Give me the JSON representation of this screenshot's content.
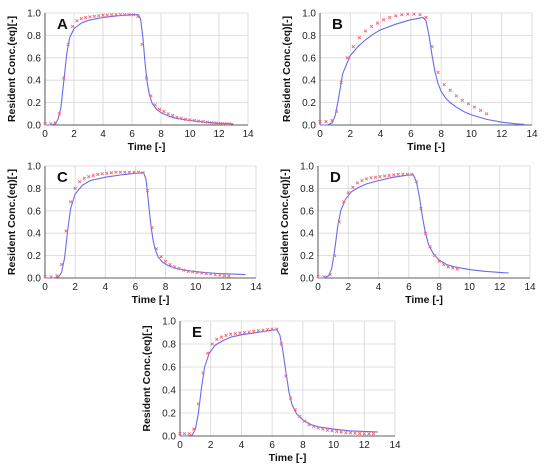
{
  "chart_data": [
    {
      "type": "line",
      "panel": "A",
      "xlabel": "Time [-]",
      "ylabel": "Resident Conc.(eq)[-]",
      "xlim": [
        0,
        14
      ],
      "ylim": [
        0,
        1.0
      ],
      "xticks": [
        "0",
        "2",
        "4",
        "6",
        "8",
        "10",
        "12",
        "14"
      ],
      "yticks": [
        "0.0",
        "0.2",
        "0.4",
        "0.6",
        "0.8",
        "1.0"
      ],
      "grid": true,
      "series": [
        {
          "kind": "line",
          "color": "#6a6aee",
          "x": [
            0,
            0.4,
            0.7,
            0.9,
            1.1,
            1.3,
            1.5,
            1.7,
            2.0,
            2.5,
            3.0,
            4.0,
            5.0,
            6.0,
            6.45,
            6.6,
            6.75,
            6.9,
            7.05,
            7.2,
            7.4,
            7.7,
            8.0,
            8.5,
            9.0,
            10.0,
            11.0,
            12.0,
            13.0
          ],
          "y": [
            0,
            0,
            0.01,
            0.05,
            0.16,
            0.4,
            0.64,
            0.78,
            0.86,
            0.91,
            0.935,
            0.96,
            0.975,
            0.985,
            0.985,
            0.94,
            0.78,
            0.55,
            0.38,
            0.27,
            0.19,
            0.14,
            0.11,
            0.08,
            0.06,
            0.04,
            0.025,
            0.015,
            0.01
          ]
        },
        {
          "kind": "markers",
          "color": "#ee6a7a",
          "x": [
            0,
            0.4,
            0.7,
            1.0,
            1.3,
            1.6,
            1.9,
            2.2,
            2.5,
            2.8,
            3.1,
            3.4,
            3.7,
            4.0,
            4.3,
            4.6,
            4.9,
            5.2,
            5.5,
            5.8,
            6.1,
            6.4,
            6.7,
            7.0,
            7.3,
            7.6,
            7.9,
            8.2,
            8.5,
            8.8,
            9.1,
            9.4,
            9.7,
            10.0,
            10.3,
            10.6,
            10.9,
            11.2,
            11.5,
            11.8,
            12.1,
            12.4,
            12.7
          ],
          "y": [
            0.01,
            0.01,
            0.02,
            0.1,
            0.42,
            0.72,
            0.88,
            0.93,
            0.95,
            0.96,
            0.965,
            0.97,
            0.975,
            0.98,
            0.98,
            0.985,
            0.985,
            0.985,
            0.985,
            0.985,
            0.985,
            0.97,
            0.72,
            0.42,
            0.26,
            0.18,
            0.14,
            0.12,
            0.1,
            0.085,
            0.07,
            0.06,
            0.05,
            0.045,
            0.04,
            0.035,
            0.03,
            0.025,
            0.02,
            0.018,
            0.015,
            0.012,
            0.01
          ]
        }
      ]
    },
    {
      "type": "line",
      "panel": "B",
      "xlabel": "Time [-]",
      "ylabel": "Resident Conc.(eq)[-]",
      "xlim": [
        0,
        14
      ],
      "ylim": [
        0,
        1.0
      ],
      "xticks": [
        "0",
        "2",
        "4",
        "6",
        "8",
        "10",
        "12",
        "14"
      ],
      "yticks": [
        "0.0",
        "0.2",
        "0.4",
        "0.6",
        "0.8",
        "1.0"
      ],
      "grid": true,
      "series": [
        {
          "kind": "line",
          "color": "#6a6aee",
          "x": [
            0,
            0.5,
            0.8,
            1.0,
            1.2,
            1.5,
            2.0,
            2.5,
            3.0,
            3.5,
            4.0,
            5.0,
            6.0,
            6.8,
            7.0,
            7.2,
            7.4,
            7.6,
            7.8,
            8.0,
            8.3,
            8.6,
            9.0,
            9.5,
            10.0,
            11.0,
            12.0,
            13.0,
            13.5
          ],
          "y": [
            0,
            0,
            0.02,
            0.08,
            0.22,
            0.46,
            0.62,
            0.7,
            0.76,
            0.81,
            0.85,
            0.9,
            0.94,
            0.96,
            0.93,
            0.8,
            0.62,
            0.47,
            0.37,
            0.3,
            0.24,
            0.2,
            0.16,
            0.12,
            0.09,
            0.05,
            0.025,
            0.01,
            0.005
          ]
        },
        {
          "kind": "markers",
          "color": "#ee6a7a",
          "x": [
            0,
            0.4,
            0.8,
            1.1,
            1.4,
            1.8,
            2.2,
            2.6,
            3.0,
            3.4,
            3.8,
            4.2,
            4.6,
            5.0,
            5.4,
            5.8,
            6.2,
            6.6,
            7.0,
            7.4,
            7.8,
            8.2,
            8.6,
            9.0,
            9.4,
            9.8,
            10.2,
            10.6,
            11.0
          ],
          "y": [
            0.03,
            0.03,
            0.04,
            0.12,
            0.38,
            0.6,
            0.7,
            0.78,
            0.84,
            0.88,
            0.91,
            0.94,
            0.96,
            0.975,
            0.985,
            0.99,
            0.99,
            0.985,
            0.96,
            0.7,
            0.47,
            0.36,
            0.31,
            0.26,
            0.22,
            0.19,
            0.16,
            0.13,
            0.1
          ]
        }
      ]
    },
    {
      "type": "line",
      "panel": "C",
      "xlabel": "Time [-]",
      "ylabel": "Resident Conc.(eq)[-]",
      "xlim": [
        0,
        14
      ],
      "ylim": [
        0,
        1.0
      ],
      "xticks": [
        "0",
        "2",
        "4",
        "6",
        "8",
        "10",
        "12",
        "14"
      ],
      "yticks": [
        "0.0",
        "0.2",
        "0.4",
        "0.6",
        "0.8",
        "1.0"
      ],
      "grid": true,
      "series": [
        {
          "kind": "line",
          "color": "#6a6aee",
          "x": [
            0,
            0.6,
            0.9,
            1.1,
            1.3,
            1.5,
            1.7,
            2.0,
            2.5,
            3.0,
            4.0,
            5.0,
            6.0,
            6.55,
            6.7,
            6.85,
            7.0,
            7.15,
            7.3,
            7.5,
            7.8,
            8.2,
            8.7,
            9.5,
            10.5,
            11.5,
            12.5,
            13.3
          ],
          "y": [
            0,
            0,
            0.01,
            0.05,
            0.18,
            0.42,
            0.62,
            0.75,
            0.83,
            0.87,
            0.9,
            0.92,
            0.935,
            0.94,
            0.88,
            0.7,
            0.5,
            0.35,
            0.26,
            0.19,
            0.14,
            0.11,
            0.085,
            0.065,
            0.05,
            0.04,
            0.035,
            0.03
          ]
        },
        {
          "kind": "markers",
          "color": "#ee6a7a",
          "x": [
            0,
            0.4,
            0.8,
            1.1,
            1.4,
            1.7,
            2.0,
            2.3,
            2.6,
            2.9,
            3.2,
            3.5,
            3.8,
            4.1,
            4.4,
            4.7,
            5.0,
            5.3,
            5.6,
            5.9,
            6.2,
            6.5,
            6.8,
            7.1,
            7.4,
            7.7,
            8.0,
            8.3,
            8.6,
            8.9,
            9.2,
            9.5,
            9.8,
            10.1,
            10.4,
            10.7,
            11.0,
            11.3,
            11.6,
            11.9,
            12.2
          ],
          "y": [
            0.01,
            0.01,
            0.02,
            0.12,
            0.42,
            0.68,
            0.8,
            0.86,
            0.89,
            0.905,
            0.915,
            0.925,
            0.93,
            0.935,
            0.94,
            0.945,
            0.945,
            0.945,
            0.945,
            0.945,
            0.945,
            0.94,
            0.78,
            0.45,
            0.26,
            0.19,
            0.15,
            0.12,
            0.1,
            0.085,
            0.07,
            0.06,
            0.055,
            0.05,
            0.045,
            0.04,
            0.035,
            0.03,
            0.025,
            0.02,
            0.018
          ]
        }
      ]
    },
    {
      "type": "line",
      "panel": "D",
      "xlabel": "Time [-]",
      "ylabel": "Resident Conc.(eq)[-]",
      "xlim": [
        0,
        14
      ],
      "ylim": [
        0,
        1.0
      ],
      "xticks": [
        "0",
        "2",
        "4",
        "6",
        "8",
        "10",
        "12",
        "14"
      ],
      "yticks": [
        "0.0",
        "0.2",
        "0.4",
        "0.6",
        "0.8",
        "1.0"
      ],
      "grid": true,
      "series": [
        {
          "kind": "line",
          "color": "#6a6aee",
          "x": [
            0,
            0.4,
            0.7,
            0.9,
            1.1,
            1.3,
            1.5,
            1.8,
            2.2,
            2.7,
            3.2,
            4.0,
            5.0,
            6.0,
            6.3,
            6.5,
            6.7,
            6.9,
            7.1,
            7.3,
            7.6,
            8.0,
            8.5,
            9.0,
            10.0,
            11.0,
            12.0,
            12.6
          ],
          "y": [
            0,
            0,
            0.02,
            0.08,
            0.25,
            0.46,
            0.6,
            0.7,
            0.77,
            0.81,
            0.84,
            0.87,
            0.9,
            0.92,
            0.92,
            0.86,
            0.72,
            0.54,
            0.4,
            0.3,
            0.22,
            0.16,
            0.12,
            0.1,
            0.075,
            0.06,
            0.05,
            0.045
          ]
        },
        {
          "kind": "markers",
          "color": "#ee6a7a",
          "x": [
            0,
            0.4,
            0.8,
            1.1,
            1.4,
            1.7,
            2.0,
            2.3,
            2.6,
            2.9,
            3.2,
            3.5,
            3.8,
            4.1,
            4.4,
            4.7,
            5.0,
            5.3,
            5.6,
            5.9,
            6.2,
            6.5,
            6.8,
            7.1,
            7.4,
            7.7,
            8.0,
            8.3,
            8.6,
            8.9,
            9.2
          ],
          "y": [
            0.01,
            0.01,
            0.03,
            0.2,
            0.5,
            0.68,
            0.76,
            0.81,
            0.85,
            0.87,
            0.885,
            0.895,
            0.9,
            0.905,
            0.91,
            0.915,
            0.92,
            0.925,
            0.925,
            0.925,
            0.925,
            0.86,
            0.62,
            0.4,
            0.28,
            0.2,
            0.15,
            0.12,
            0.1,
            0.09,
            0.08
          ]
        }
      ]
    },
    {
      "type": "line",
      "panel": "E",
      "xlabel": "Time [-]",
      "ylabel": "Resident Conc.(eq)[-]",
      "xlim": [
        0,
        14
      ],
      "ylim": [
        0,
        1.0
      ],
      "xticks": [
        "0",
        "2",
        "4",
        "6",
        "8",
        "10",
        "12",
        "14"
      ],
      "yticks": [
        "0.0",
        "0.2",
        "0.4",
        "0.6",
        "0.8",
        "1.0"
      ],
      "grid": true,
      "series": [
        {
          "kind": "line",
          "color": "#6a6aee",
          "x": [
            0,
            0.5,
            0.8,
            1.0,
            1.2,
            1.4,
            1.6,
            1.9,
            2.3,
            2.8,
            3.3,
            4.0,
            5.0,
            6.0,
            6.3,
            6.5,
            6.7,
            6.9,
            7.1,
            7.3,
            7.6,
            8.0,
            8.5,
            9.0,
            10.0,
            11.0,
            12.0,
            12.9
          ],
          "y": [
            0,
            0,
            0.01,
            0.06,
            0.2,
            0.42,
            0.6,
            0.72,
            0.79,
            0.83,
            0.86,
            0.88,
            0.9,
            0.92,
            0.925,
            0.88,
            0.74,
            0.55,
            0.38,
            0.27,
            0.19,
            0.14,
            0.1,
            0.08,
            0.06,
            0.045,
            0.04,
            0.035
          ]
        },
        {
          "kind": "markers",
          "color": "#ee6a7a",
          "x": [
            0,
            0.3,
            0.6,
            0.9,
            1.2,
            1.5,
            1.8,
            2.1,
            2.4,
            2.7,
            3.0,
            3.3,
            3.6,
            3.9,
            4.2,
            4.5,
            4.8,
            5.1,
            5.4,
            5.7,
            6.0,
            6.3,
            6.6,
            6.9,
            7.2,
            7.5,
            7.8,
            8.1,
            8.4,
            8.7,
            9.0,
            9.3,
            9.6,
            9.9,
            10.2,
            10.5,
            10.8,
            11.1,
            11.4,
            11.7,
            12.0,
            12.3,
            12.6
          ],
          "y": [
            0.02,
            0.02,
            0.02,
            0.06,
            0.28,
            0.55,
            0.72,
            0.8,
            0.84,
            0.86,
            0.875,
            0.885,
            0.89,
            0.895,
            0.9,
            0.905,
            0.91,
            0.915,
            0.92,
            0.925,
            0.93,
            0.93,
            0.8,
            0.52,
            0.33,
            0.23,
            0.17,
            0.13,
            0.1,
            0.085,
            0.07,
            0.06,
            0.05,
            0.045,
            0.04,
            0.035,
            0.03,
            0.028,
            0.025,
            0.022,
            0.02,
            0.02,
            0.02
          ]
        }
      ]
    }
  ]
}
